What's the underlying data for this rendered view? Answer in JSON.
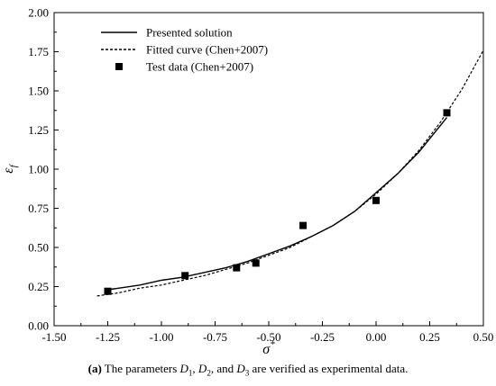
{
  "chart_data": {
    "type": "line",
    "x_axis": {
      "label": "σ",
      "label_superscript": "*",
      "range": [
        -1.5,
        0.5
      ],
      "ticks": [
        "-1.50",
        "-1.25",
        "-1.00",
        "-0.75",
        "-0.50",
        "-0.25",
        "0.00",
        "0.25",
        "0.50"
      ]
    },
    "y_axis": {
      "label": "ε",
      "label_subscript": "f",
      "range": [
        0,
        2.0
      ],
      "ticks": [
        "0.00",
        "0.25",
        "0.50",
        "0.75",
        "1.00",
        "1.25",
        "1.50",
        "1.75",
        "2.00"
      ]
    },
    "grid": false,
    "legend_position": "top-left",
    "series": [
      {
        "name": "Presented solution",
        "style": "solid",
        "x": [
          -1.25,
          -1.1,
          -1.0,
          -0.9,
          -0.8,
          -0.7,
          -0.6,
          -0.5,
          -0.4,
          -0.3,
          -0.2,
          -0.1,
          0.0,
          0.1,
          0.2,
          0.33
        ],
        "y": [
          0.23,
          0.26,
          0.29,
          0.31,
          0.34,
          0.37,
          0.41,
          0.46,
          0.51,
          0.57,
          0.64,
          0.73,
          0.85,
          0.97,
          1.11,
          1.33
        ]
      },
      {
        "name": "Fitted curve (Chen+2007)",
        "style": "dashed",
        "x": [
          -1.3,
          -1.2,
          -1.1,
          -1.0,
          -0.9,
          -0.8,
          -0.7,
          -0.6,
          -0.5,
          -0.4,
          -0.3,
          -0.2,
          -0.1,
          0.0,
          0.1,
          0.2,
          0.3,
          0.4,
          0.5
        ],
        "y": [
          0.19,
          0.21,
          0.24,
          0.26,
          0.29,
          0.32,
          0.36,
          0.4,
          0.45,
          0.5,
          0.57,
          0.64,
          0.73,
          0.84,
          0.97,
          1.12,
          1.3,
          1.51,
          1.76
        ]
      },
      {
        "name": "Test data (Chen+2007)",
        "style": "markers",
        "x": [
          -1.25,
          -0.89,
          -0.65,
          -0.56,
          -0.34,
          0.0,
          0.33
        ],
        "y": [
          0.22,
          0.32,
          0.37,
          0.4,
          0.64,
          0.8,
          1.36
        ]
      }
    ]
  },
  "caption": {
    "label": "(a)",
    "pre": "The parameters ",
    "d1": "D",
    "d1_sub": "1",
    "sep1": ", ",
    "d2": "D",
    "d2_sub": "2",
    "sep2": ", and ",
    "d3": "D",
    "d3_sub": "3",
    "post": " are verified as experimental data."
  }
}
